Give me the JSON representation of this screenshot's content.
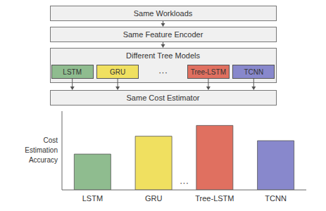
{
  "chart_data": {
    "type": "bar",
    "categories": [
      "LSTM",
      "GRU",
      "Tree-LSTM",
      "TCNN"
    ],
    "values": [
      0.4,
      0.6,
      0.72,
      0.55
    ],
    "colors": [
      "#8fbc8f",
      "#f0e060",
      "#e07060",
      "#8888cc"
    ],
    "y_label": "Cost\nEstimation\nAccuracy",
    "ylim": [
      0,
      0.88
    ],
    "tick_labels": "x",
    "grid": false,
    "annotations": [
      "Same Workloads",
      "Same Feature Encoder",
      "Different Tree Models",
      "Same Cost Estimator",
      "···"
    ]
  }
}
